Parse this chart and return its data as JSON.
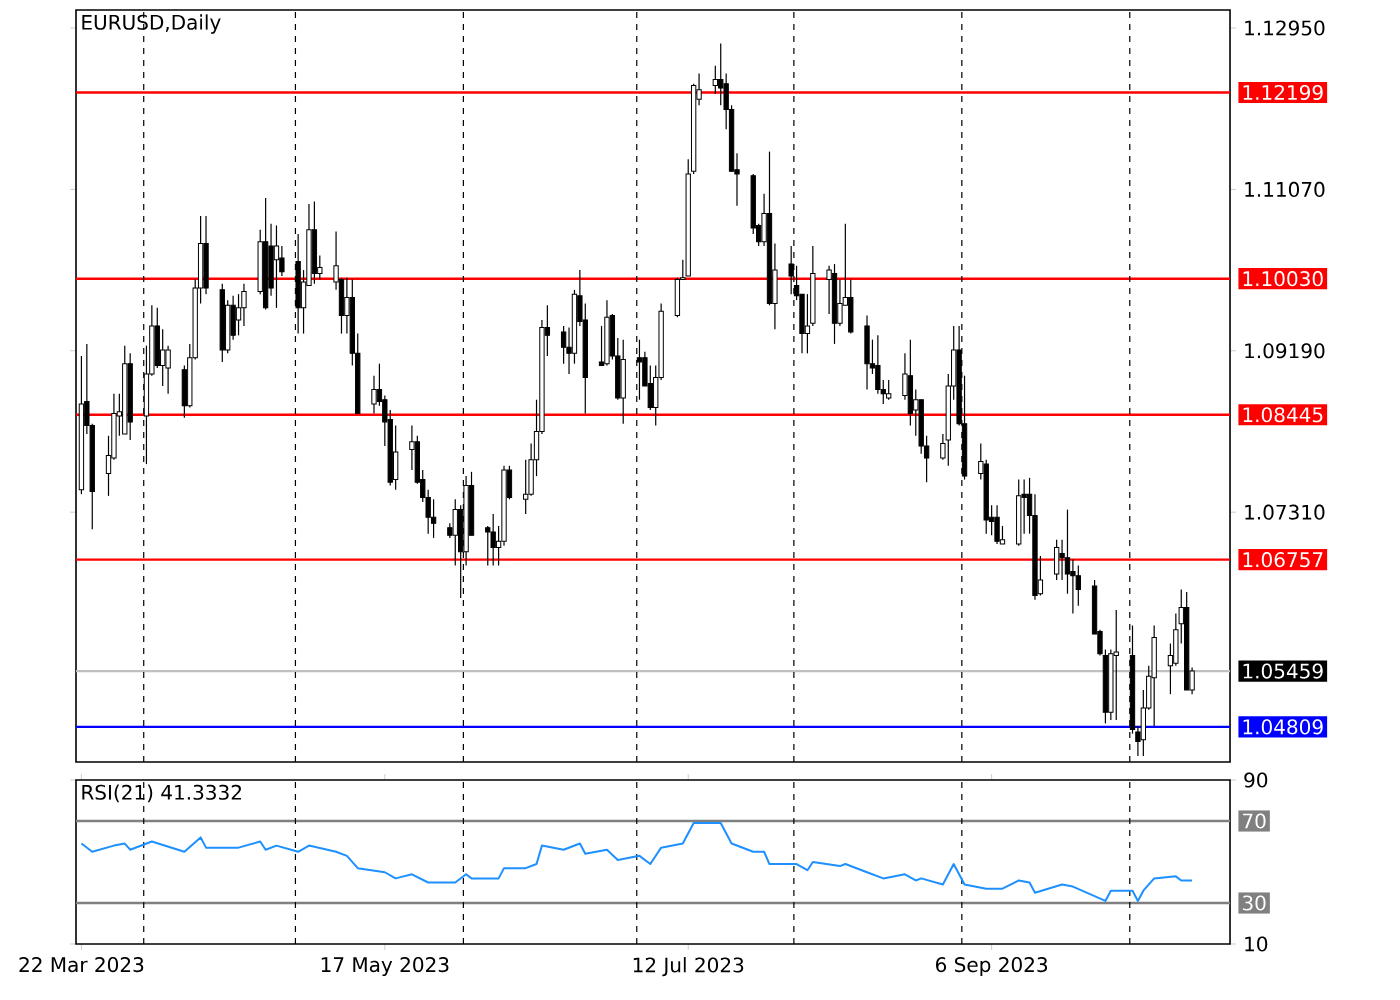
{
  "chart_data": [
    {
      "type": "candlestick",
      "title": "EURUSD,Daily",
      "x": [
        "2023-03-22",
        "2023-03-23",
        "2023-03-24",
        "2023-03-27",
        "2023-03-28",
        "2023-03-29",
        "2023-03-30",
        "2023-03-31",
        "2023-04-03",
        "2023-04-04",
        "2023-04-05",
        "2023-04-06",
        "2023-04-07",
        "2023-04-10",
        "2023-04-11",
        "2023-04-12",
        "2023-04-13",
        "2023-04-14",
        "2023-04-17",
        "2023-04-18",
        "2023-04-19",
        "2023-04-20",
        "2023-04-21",
        "2023-04-24",
        "2023-04-25",
        "2023-04-26",
        "2023-04-27",
        "2023-04-28",
        "2023-05-01",
        "2023-05-02",
        "2023-05-03",
        "2023-05-04",
        "2023-05-05",
        "2023-05-08",
        "2023-05-09",
        "2023-05-10",
        "2023-05-11",
        "2023-05-12",
        "2023-05-15",
        "2023-05-16",
        "2023-05-17",
        "2023-05-18",
        "2023-05-19",
        "2023-05-22",
        "2023-05-23",
        "2023-05-24",
        "2023-05-25",
        "2023-05-26",
        "2023-05-29",
        "2023-05-30",
        "2023-05-31",
        "2023-06-01",
        "2023-06-02",
        "2023-06-05",
        "2023-06-06",
        "2023-06-07",
        "2023-06-08",
        "2023-06-09",
        "2023-06-12",
        "2023-06-13",
        "2023-06-14",
        "2023-06-15",
        "2023-06-16",
        "2023-06-19",
        "2023-06-20",
        "2023-06-21",
        "2023-06-22",
        "2023-06-23",
        "2023-06-26",
        "2023-06-27",
        "2023-06-28",
        "2023-06-29",
        "2023-06-30",
        "2023-07-03",
        "2023-07-04",
        "2023-07-05",
        "2023-07-06",
        "2023-07-07",
        "2023-07-10",
        "2023-07-11",
        "2023-07-12",
        "2023-07-13",
        "2023-07-14",
        "2023-07-17",
        "2023-07-18",
        "2023-07-19",
        "2023-07-20",
        "2023-07-21",
        "2023-07-24",
        "2023-07-25",
        "2023-07-26",
        "2023-07-27",
        "2023-07-28",
        "2023-07-31",
        "2023-08-01",
        "2023-08-02",
        "2023-08-03",
        "2023-08-04",
        "2023-08-07",
        "2023-08-08",
        "2023-08-09",
        "2023-08-10",
        "2023-08-11",
        "2023-08-14",
        "2023-08-15",
        "2023-08-16",
        "2023-08-17",
        "2023-08-18",
        "2023-08-21",
        "2023-08-22",
        "2023-08-23",
        "2023-08-24",
        "2023-08-25",
        "2023-08-28",
        "2023-08-29",
        "2023-08-30",
        "2023-08-31",
        "2023-09-01",
        "2023-09-04",
        "2023-09-05",
        "2023-09-06",
        "2023-09-07",
        "2023-09-08",
        "2023-09-11",
        "2023-09-12",
        "2023-09-13",
        "2023-09-14",
        "2023-09-15",
        "2023-09-18",
        "2023-09-19",
        "2023-09-20",
        "2023-09-21",
        "2023-09-22",
        "2023-09-25",
        "2023-09-26",
        "2023-09-27",
        "2023-09-28",
        "2023-09-29",
        "2023-10-02",
        "2023-10-03",
        "2023-10-04",
        "2023-10-05",
        "2023-10-06",
        "2023-10-09",
        "2023-10-10",
        "2023-10-11",
        "2023-10-12",
        "2023-10-13"
      ],
      "ohlc": [
        [
          1.0757,
          1.0913,
          1.0752,
          1.0857
        ],
        [
          1.086,
          1.0927,
          1.0822,
          1.0832
        ],
        [
          1.0832,
          1.0834,
          1.0711,
          1.0755
        ],
        [
          1.0776,
          1.082,
          1.075,
          1.0797
        ],
        [
          1.0794,
          1.0869,
          1.0792,
          1.0846
        ],
        [
          1.0843,
          1.0869,
          1.082,
          1.0848
        ],
        [
          1.0822,
          1.0925,
          1.0822,
          1.0904
        ],
        [
          1.0904,
          1.0916,
          1.0815,
          1.0836
        ],
        [
          1.0843,
          1.0925,
          1.0787,
          1.0892
        ],
        [
          1.0892,
          1.0972,
          1.089,
          1.0948
        ],
        [
          1.0948,
          1.0969,
          1.0899,
          1.0902
        ],
        [
          1.0902,
          1.0944,
          1.0878,
          1.092
        ],
        [
          1.0899,
          1.0925,
          1.0869,
          1.092
        ],
        [
          1.0897,
          1.0902,
          1.0841,
          1.0855
        ],
        [
          1.0855,
          1.0927,
          1.0853,
          1.0911
        ],
        [
          1.0911,
          1.1002,
          1.0909,
          1.0992
        ],
        [
          1.0992,
          1.1076,
          1.0974,
          1.1044
        ],
        [
          1.1044,
          1.1076,
          1.0985,
          1.0992
        ],
        [
          1.099,
          1.0997,
          1.0906,
          1.092
        ],
        [
          1.092,
          1.0978,
          1.0916,
          1.0972
        ],
        [
          1.0972,
          1.0983,
          1.0932,
          1.0937
        ],
        [
          1.0955,
          1.0985,
          1.0937,
          1.0969
        ],
        [
          1.0969,
          1.0997,
          1.0948,
          1.0988
        ],
        [
          1.0988,
          1.106,
          1.0985,
          1.1046
        ],
        [
          1.1046,
          1.1097,
          1.0967,
          1.0969
        ],
        [
          1.1041,
          1.1067,
          1.0983,
          1.0992
        ],
        [
          1.1025,
          1.1065,
          1.0969,
          1.1041
        ],
        [
          1.1027,
          1.1041,
          1.1006,
          1.1011
        ],
        [
          1.1023,
          1.1055,
          1.0939,
          1.0969
        ],
        [
          1.0969,
          1.1013,
          1.0939,
          1.0999
        ],
        [
          1.0995,
          1.109,
          1.0995,
          1.106
        ],
        [
          1.106,
          1.1093,
          1.0997,
          1.1009
        ],
        [
          1.1009,
          1.103,
          1.1002,
          1.1016
        ],
        [
          1.0999,
          1.1058,
          1.099,
          1.1018
        ],
        [
          1.1002,
          1.1004,
          1.0939,
          1.096
        ],
        [
          1.096,
          1.1004,
          1.0939,
          1.0981
        ],
        [
          1.0981,
          1.1002,
          1.0902,
          1.0916
        ],
        [
          1.0916,
          1.0939,
          1.0846,
          1.0846
        ],
        [
          1.0857,
          1.089,
          1.0846,
          1.0874
        ],
        [
          1.0874,
          1.0904,
          1.0855,
          1.086
        ],
        [
          1.0862,
          1.0867,
          1.0808,
          1.0836
        ],
        [
          1.0839,
          1.085,
          1.0762,
          1.0766
        ],
        [
          1.0769,
          1.0832,
          1.0757,
          1.0801
        ],
        [
          1.0804,
          1.0832,
          1.078,
          1.0813
        ],
        [
          1.0813,
          1.082,
          1.0764,
          1.0766
        ],
        [
          1.0769,
          1.078,
          1.0743,
          1.0748
        ],
        [
          1.0748,
          1.0757,
          1.0706,
          1.0725
        ],
        [
          1.0725,
          1.0746,
          1.0701,
          1.0718
        ],
        [
          1.0713,
          1.0718,
          1.0701,
          1.0704
        ],
        [
          1.0704,
          1.0746,
          1.0669,
          1.0734
        ],
        [
          1.0734,
          1.0739,
          1.0631,
          1.0685
        ],
        [
          1.0685,
          1.0773,
          1.0669,
          1.0762
        ],
        [
          1.0762,
          1.0778,
          1.0704,
          1.0704
        ],
        [
          1.0713,
          1.0715,
          1.0669,
          1.0708
        ],
        [
          1.0708,
          1.0729,
          1.0669,
          1.069
        ],
        [
          1.069,
          1.0715,
          1.0669,
          1.0697
        ],
        [
          1.0697,
          1.0785,
          1.0692,
          1.078
        ],
        [
          1.078,
          1.0785,
          1.0746,
          1.0748
        ],
        [
          1.0746,
          1.0792,
          1.0729,
          1.0752
        ],
        [
          1.0752,
          1.0811,
          1.075,
          1.0792
        ],
        [
          1.0792,
          1.0862,
          1.0773,
          1.0825
        ],
        [
          1.0825,
          1.0955,
          1.0822,
          1.0946
        ],
        [
          1.0946,
          1.0972,
          1.0913,
          1.0937
        ],
        [
          1.0941,
          1.0948,
          1.0904,
          1.0923
        ],
        [
          1.0923,
          1.0946,
          1.0892,
          1.0916
        ],
        [
          1.0916,
          1.099,
          1.0904,
          1.0985
        ],
        [
          1.0983,
          1.1013,
          1.0948,
          1.0953
        ],
        [
          1.0955,
          1.0974,
          1.0846,
          1.0888
        ],
        [
          1.0906,
          1.0948,
          1.0902,
          1.0902
        ],
        [
          1.0904,
          1.0978,
          1.0902,
          1.0958
        ],
        [
          1.096,
          1.0962,
          1.0909,
          1.0913
        ],
        [
          1.0913,
          1.0934,
          1.0862,
          1.0864
        ],
        [
          1.0864,
          1.0932,
          1.0834,
          1.0909
        ],
        [
          1.0911,
          1.0932,
          1.0862,
          1.0906
        ],
        [
          1.0911,
          1.0918,
          1.0878,
          1.0878
        ],
        [
          1.0881,
          1.0902,
          1.085,
          1.0853
        ],
        [
          1.0853,
          1.0902,
          1.0832,
          1.0888
        ],
        [
          1.0888,
          1.0974,
          1.0885,
          1.0965
        ],
        [
          1.096,
          1.1004,
          1.0958,
          1.1002
        ],
        [
          1.1002,
          1.1025,
          1.1002,
          1.1004
        ],
        [
          1.1006,
          1.1142,
          1.1006,
          1.1125
        ],
        [
          1.1128,
          1.123,
          1.1125,
          1.1228
        ],
        [
          1.1212,
          1.1242,
          1.1205,
          1.1223
        ],
        [
          1.1228,
          1.1251,
          1.1218,
          1.1235
        ],
        [
          1.1235,
          1.1277,
          1.1205,
          1.1225
        ],
        [
          1.123,
          1.1242,
          1.1177,
          1.12
        ],
        [
          1.12,
          1.1205,
          1.1128,
          1.1128
        ],
        [
          1.113,
          1.1149,
          1.1088,
          1.1125
        ],
        [
          1.1123,
          1.1125,
          1.1055,
          1.1062
        ],
        [
          1.1065,
          1.1067,
          1.1041,
          1.1046
        ],
        [
          1.1046,
          1.1102,
          1.1041,
          1.1079
        ],
        [
          1.1079,
          1.1151,
          1.0972,
          1.0974
        ],
        [
          1.0974,
          1.1044,
          1.0944,
          1.1013
        ],
        [
          1.102,
          1.1041,
          1.0985,
          1.1006
        ],
        [
          1.0995,
          1.1018,
          1.0978,
          1.0983
        ],
        [
          1.0985,
          1.0985,
          1.0916,
          1.0939
        ],
        [
          1.0939,
          1.0985,
          1.0916,
          1.0948
        ],
        [
          1.0951,
          1.1041,
          1.0948,
          1.1009
        ],
        [
          1.1002,
          1.1018,
          1.0962,
          1.1013
        ],
        [
          1.1009,
          1.102,
          1.0927,
          1.0951
        ],
        [
          1.0951,
          1.1002,
          1.0948,
          1.0974
        ],
        [
          1.0972,
          1.1067,
          1.0972,
          1.0981
        ],
        [
          1.0981,
          1.1002,
          1.0939,
          1.0941
        ],
        [
          1.0948,
          1.096,
          1.0874,
          1.0904
        ],
        [
          1.0904,
          1.0932,
          1.0892,
          1.0899
        ],
        [
          1.0902,
          1.0937,
          1.0869,
          1.0874
        ],
        [
          1.0874,
          1.0885,
          1.0857,
          1.0869
        ],
        [
          1.0864,
          1.0885,
          1.0862,
          1.0869
        ],
        [
          1.0867,
          1.0916,
          1.0862,
          1.0892
        ],
        [
          1.089,
          1.0932,
          1.0832,
          1.0846
        ],
        [
          1.085,
          1.0874,
          1.082,
          1.0862
        ],
        [
          1.0862,
          1.0862,
          1.0799,
          1.0808
        ],
        [
          1.0808,
          1.082,
          1.0766,
          1.0794
        ],
        [
          1.0794,
          1.0822,
          1.0792,
          1.0811
        ],
        [
          1.0815,
          1.0892,
          1.0785,
          1.0878
        ],
        [
          1.0878,
          1.0948,
          1.0862,
          1.092
        ],
        [
          1.092,
          1.0948,
          1.0832,
          1.0834
        ],
        [
          1.0834,
          1.089,
          1.0769,
          1.0773
        ],
        [
          1.0776,
          1.0811,
          1.0769,
          1.079
        ],
        [
          1.0787,
          1.0792,
          1.0706,
          1.0722
        ],
        [
          1.0725,
          1.0739,
          1.0704,
          1.072
        ],
        [
          1.0725,
          1.0739,
          1.0694,
          1.0697
        ],
        [
          1.0694,
          1.0715,
          1.0694,
          1.0699
        ],
        [
          1.0694,
          1.0769,
          1.0692,
          1.075
        ],
        [
          1.0752,
          1.0769,
          1.0706,
          1.0748
        ],
        [
          1.0752,
          1.0771,
          1.0706,
          1.0727
        ],
        [
          1.0727,
          1.0752,
          1.0629,
          1.0634
        ],
        [
          1.0636,
          1.068,
          1.0634,
          1.0652
        ],
        [
          1.0659,
          1.0699,
          1.0652,
          1.069
        ],
        [
          1.0683,
          1.0699,
          1.0652,
          1.0678
        ],
        [
          1.0678,
          1.0734,
          1.0636,
          1.0659
        ],
        [
          1.0662,
          1.0676,
          1.0613,
          1.0657
        ],
        [
          1.0657,
          1.0669,
          1.0622,
          1.0641
        ],
        [
          1.0645,
          1.0652,
          1.0589,
          1.0589
        ],
        [
          1.0592,
          1.0594,
          1.0564,
          1.0566
        ],
        [
          1.0564,
          1.0571,
          1.0485,
          1.0498
        ],
        [
          1.0498,
          1.0571,
          1.0489,
          1.0566
        ],
        [
          1.0564,
          1.0617,
          1.0489,
          1.0568
        ],
        [
          1.0564,
          1.0599,
          1.0473,
          1.0478
        ],
        [
          1.0475,
          1.0482,
          1.0447,
          1.0464
        ],
        [
          1.0466,
          1.0524,
          1.0447,
          1.0503
        ],
        [
          1.0503,
          1.0552,
          1.0501,
          1.054
        ],
        [
          1.0538,
          1.0599,
          1.0482,
          1.0585
        ],
        [
          1.0552,
          1.0578,
          1.0519,
          1.0564
        ],
        [
          1.0555,
          1.0613,
          1.0552,
          1.0594
        ],
        [
          1.0601,
          1.0641,
          1.0578,
          1.062
        ],
        [
          1.062,
          1.0638,
          1.0524,
          1.0524
        ],
        [
          1.0524,
          1.055,
          1.0519,
          1.0546
        ]
      ],
      "xlim": [
        "2023-03-21",
        "2023-10-20"
      ],
      "ylim": [
        1.044,
        1.1316
      ],
      "yticks": [
        {
          "value": 1.1295,
          "label": "1.12950"
        },
        {
          "value": 1.1107,
          "label": "1.11070"
        },
        {
          "value": 1.0919,
          "label": "1.09190"
        },
        {
          "value": 1.0731,
          "label": "1.07310"
        }
      ],
      "tick_labels": "y",
      "ref_lines": [
        {
          "axis": "y",
          "value": 1.12199,
          "label": "1.12199",
          "color": "#ff0000"
        },
        {
          "axis": "y",
          "value": 1.1003,
          "label": "1.10030",
          "color": "#ff0000"
        },
        {
          "axis": "y",
          "value": 1.08445,
          "label": "1.08445",
          "color": "#ff0000"
        },
        {
          "axis": "y",
          "value": 1.06757,
          "label": "1.06757",
          "color": "#ff0000"
        },
        {
          "axis": "y",
          "value": 1.05459,
          "label": "1.05459",
          "color": "#c0c0c0"
        },
        {
          "axis": "y",
          "value": 1.04809,
          "label": "1.04809",
          "color": "#0000ff"
        },
        {
          "axis": "x",
          "value": "2023-04-02T12:00",
          "color": "#000000",
          "line_style": "dashed"
        },
        {
          "axis": "x",
          "value": "2023-04-30T12:00",
          "color": "#000000",
          "line_style": "dashed"
        },
        {
          "axis": "x",
          "value": "2023-05-31T12:00",
          "color": "#000000",
          "line_style": "dashed"
        },
        {
          "axis": "x",
          "value": "2023-07-02T12:00",
          "color": "#000000",
          "line_style": "dashed"
        },
        {
          "axis": "x",
          "value": "2023-07-31T12:00",
          "color": "#000000",
          "line_style": "dashed"
        },
        {
          "axis": "x",
          "value": "2023-08-31T12:00",
          "color": "#000000",
          "line_style": "dashed"
        },
        {
          "axis": "x",
          "value": "2023-10-01T12:00",
          "color": "#000000",
          "line_style": "dashed"
        }
      ]
    },
    {
      "type": "line",
      "title": "RSI(21) 41.3332",
      "series": [
        {
          "color": "#1e90ff",
          "x": [
            "2023-03-22",
            "2023-03-24",
            "2023-03-28",
            "2023-03-30",
            "2023-03-31",
            "2023-04-04",
            "2023-04-10",
            "2023-04-13",
            "2023-04-14",
            "2023-04-20",
            "2023-04-24",
            "2023-04-25",
            "2023-04-27",
            "2023-05-01",
            "2023-05-03",
            "2023-05-08",
            "2023-05-10",
            "2023-05-12",
            "2023-05-17",
            "2023-05-19",
            "2023-05-22",
            "2023-05-25",
            "2023-05-30",
            "2023-06-01",
            "2023-06-02",
            "2023-06-07",
            "2023-06-08",
            "2023-06-12",
            "2023-06-14",
            "2023-06-15",
            "2023-06-19",
            "2023-06-22",
            "2023-06-23",
            "2023-06-27",
            "2023-06-29",
            "2023-07-03",
            "2023-07-05",
            "2023-07-07",
            "2023-07-11",
            "2023-07-13",
            "2023-07-18",
            "2023-07-20",
            "2023-07-24",
            "2023-07-26",
            "2023-07-27",
            "2023-08-01",
            "2023-08-03",
            "2023-08-04",
            "2023-08-09",
            "2023-08-10",
            "2023-08-14",
            "2023-08-17",
            "2023-08-21",
            "2023-08-23",
            "2023-08-24",
            "2023-08-28",
            "2023-08-30",
            "2023-09-01",
            "2023-09-05",
            "2023-09-08",
            "2023-09-11",
            "2023-09-13",
            "2023-09-14",
            "2023-09-19",
            "2023-09-21",
            "2023-09-27",
            "2023-09-28",
            "2023-10-02",
            "2023-10-03",
            "2023-10-04",
            "2023-10-06",
            "2023-10-10",
            "2023-10-11",
            "2023-10-13"
          ],
          "values": [
            59,
            55,
            58,
            59,
            56,
            60,
            55,
            62,
            57,
            57,
            60,
            56,
            58,
            55,
            58,
            55,
            53,
            47,
            45,
            42,
            44,
            40,
            40,
            44,
            42,
            42,
            47,
            47,
            49,
            58,
            56,
            59,
            54,
            56,
            51,
            53,
            49,
            57,
            59,
            69,
            69,
            59,
            55,
            55,
            49,
            49,
            46,
            50,
            48,
            49,
            45,
            42,
            44,
            41,
            42,
            39,
            49,
            39,
            37,
            37,
            41,
            40,
            35,
            39,
            38,
            31,
            36,
            36,
            31,
            36,
            42,
            43,
            41,
            41
          ]
        }
      ],
      "xlim": [
        "2023-03-21",
        "2023-10-20"
      ],
      "ylim": [
        10,
        90
      ],
      "xticks": [
        {
          "value": "2023-03-22",
          "label": "22 Mar 2023"
        },
        {
          "value": "2023-05-17",
          "label": "17 May 2023"
        },
        {
          "value": "2023-07-12",
          "label": "12 Jul 2023"
        },
        {
          "value": "2023-09-06",
          "label": "6 Sep 2023"
        }
      ],
      "yticks": [
        90,
        10
      ],
      "ref_lines": [
        {
          "axis": "y",
          "value": 70,
          "label": "70",
          "color": "#808080"
        },
        {
          "axis": "y",
          "value": 30,
          "label": "30",
          "color": "#808080"
        },
        {
          "axis": "x",
          "value": "2023-04-02T12:00",
          "color": "#000000",
          "line_style": "dashed"
        },
        {
          "axis": "x",
          "value": "2023-04-30T12:00",
          "color": "#000000",
          "line_style": "dashed"
        },
        {
          "axis": "x",
          "value": "2023-05-31T12:00",
          "color": "#000000",
          "line_style": "dashed"
        },
        {
          "axis": "x",
          "value": "2023-07-02T12:00",
          "color": "#000000",
          "line_style": "dashed"
        },
        {
          "axis": "x",
          "value": "2023-07-31T12:00",
          "color": "#000000",
          "line_style": "dashed"
        },
        {
          "axis": "x",
          "value": "2023-08-31T12:00",
          "color": "#000000",
          "line_style": "dashed"
        },
        {
          "axis": "x",
          "value": "2023-10-01T12:00",
          "color": "#000000",
          "line_style": "dashed"
        }
      ]
    }
  ]
}
